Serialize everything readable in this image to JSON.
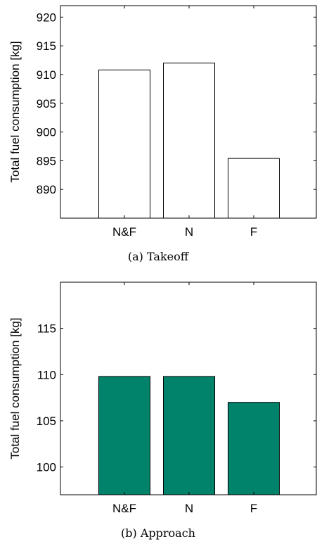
{
  "chart_data": [
    {
      "type": "bar",
      "caption": "(a) Takeoff",
      "ylabel": "Total fuel consumption [kg]",
      "xlabel": "",
      "categories": [
        "N&F",
        "N",
        "F"
      ],
      "values": [
        910.8,
        912.0,
        895.4
      ],
      "ylim": [
        885,
        922
      ],
      "yticks": [
        890,
        895,
        900,
        905,
        910,
        915,
        920
      ],
      "bar_fill": "#ffffff",
      "bar_stroke": "#000000",
      "grid": false
    },
    {
      "type": "bar",
      "caption": "(b) Approach",
      "ylabel": "Total fuel consumption [kg]",
      "xlabel": "",
      "categories": [
        "N&F",
        "N",
        "F"
      ],
      "values": [
        109.8,
        109.8,
        107.0
      ],
      "ylim": [
        97,
        120
      ],
      "yticks": [
        100,
        105,
        110,
        115
      ],
      "bar_fill": "#00826b",
      "bar_stroke": "#000000",
      "grid": false
    }
  ]
}
